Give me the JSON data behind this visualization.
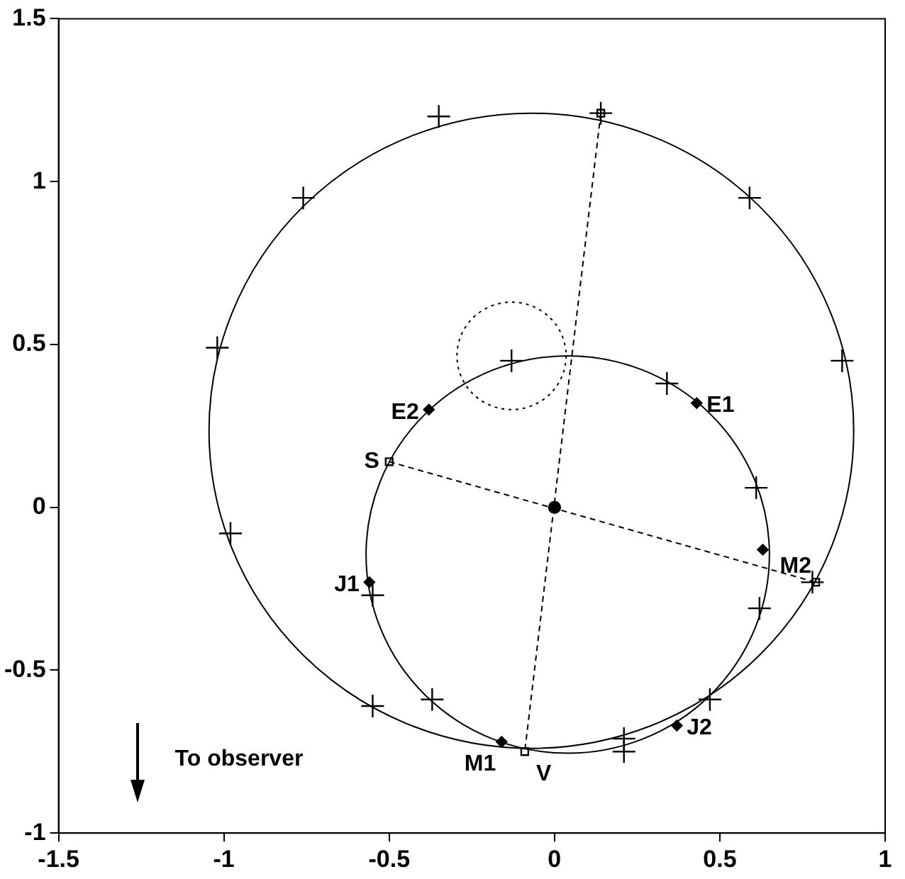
{
  "chart_data": {
    "type": "scatter",
    "xlim": [
      -1.5,
      1
    ],
    "ylim": [
      -1,
      1.5
    ],
    "xticks": [
      -1.5,
      -1,
      -0.5,
      0,
      0.5,
      1
    ],
    "yticks": [
      -1,
      -0.5,
      0,
      0.5,
      1,
      1.5
    ],
    "grid": false,
    "legend": false,
    "series": [
      {
        "type": "line",
        "color": "#000000",
        "marker": "none",
        "line_style": "dashed",
        "x": [
          0.14,
          -0.09
        ],
        "values": [
          1.21,
          -0.75
        ]
      },
      {
        "type": "line",
        "color": "#000000",
        "marker": "none",
        "line_style": "dashed",
        "x": [
          -0.5,
          0.79
        ],
        "values": [
          0.14,
          -0.23
        ]
      },
      {
        "type": "scatter",
        "color": "#000000",
        "marker": "cross",
        "x": [
          0.14,
          -0.35,
          -0.76,
          -1.02,
          -0.98,
          -0.55,
          0.21,
          0.78,
          0.87,
          0.59
        ],
        "values": [
          1.21,
          1.2,
          0.95,
          0.49,
          -0.08,
          -0.61,
          -0.71,
          -0.23,
          0.45,
          0.95
        ]
      },
      {
        "type": "scatter",
        "color": "#000000",
        "marker": "cross",
        "x": [
          -0.13,
          0.34,
          0.61,
          0.62,
          0.47,
          0.21,
          -0.37,
          -0.55
        ],
        "values": [
          0.45,
          0.38,
          0.06,
          -0.31,
          -0.59,
          -0.75,
          -0.59,
          -0.27
        ]
      },
      {
        "type": "scatter",
        "color": "#000000",
        "marker": "diamond",
        "x": [
          0.43,
          -0.38,
          0.63,
          -0.56,
          0.37,
          -0.16
        ],
        "values": [
          0.32,
          0.3,
          -0.13,
          -0.23,
          -0.67,
          -0.72
        ]
      },
      {
        "type": "scatter",
        "color": "#000000",
        "marker": "square",
        "x": [
          -0.5,
          -0.09,
          0.14,
          0.79
        ],
        "values": [
          0.14,
          -0.75,
          1.21,
          -0.23
        ]
      },
      {
        "type": "scatter",
        "color": "#000000",
        "marker": "circle",
        "x": [
          0
        ],
        "values": [
          0
        ]
      }
    ],
    "annotations": [
      {
        "text": "E1",
        "x": 0.43,
        "y": 0.32
      },
      {
        "text": "E2",
        "x": -0.38,
        "y": 0.3
      },
      {
        "text": "M2",
        "x": 0.63,
        "y": -0.13
      },
      {
        "text": "J1",
        "x": -0.56,
        "y": -0.23
      },
      {
        "text": "J2",
        "x": 0.37,
        "y": -0.67
      },
      {
        "text": "M1",
        "x": -0.16,
        "y": -0.72
      },
      {
        "text": "S",
        "x": -0.5,
        "y": 0.14
      },
      {
        "text": "V",
        "x": -0.09,
        "y": -0.75
      },
      "To observer"
    ]
  }
}
